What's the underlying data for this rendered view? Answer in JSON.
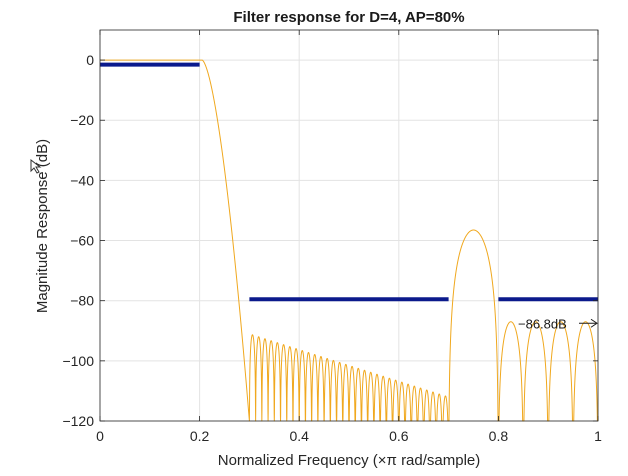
{
  "chart_data": {
    "type": "line",
    "title": "Filter response for D=4, AP=80%",
    "xlabel": "Normalized Frequency (×π rad/sample)",
    "ylabel": "Magnitude Response (dB)",
    "xlim": [
      0,
      1
    ],
    "ylim": [
      -120,
      10
    ],
    "x_ticks": [
      0,
      0.2,
      0.4,
      0.6,
      0.8,
      1
    ],
    "x_tick_labels": [
      "0",
      "0.2",
      "0.4",
      "0.6",
      "0.8",
      "1"
    ],
    "y_ticks": [
      0,
      -20,
      -40,
      -60,
      -80,
      -100,
      -120
    ],
    "y_tick_labels": [
      "0",
      "−20",
      "−40",
      "−60",
      "−80",
      "−100",
      "−120"
    ],
    "grid": true,
    "colors": {
      "response": "#f0a81e",
      "mask": "#0b1a8c",
      "annotation": "#1a1a1a"
    },
    "mask_segments": [
      {
        "x": [
          0,
          0.2
        ],
        "y": [
          -1.5,
          -1.5
        ]
      },
      {
        "x": [
          0.3,
          0.7
        ],
        "y": [
          -79.5,
          -79.5
        ]
      },
      {
        "x": [
          0.8,
          1.0
        ],
        "y": [
          -79.5,
          -79.5
        ]
      }
    ],
    "response_features": {
      "passband": {
        "x": [
          0,
          0.205
        ],
        "y": 0
      },
      "transition": {
        "x": [
          0.205,
          0.3
        ],
        "y_end": -120
      },
      "stopband1": {
        "x": [
          0.3,
          0.7
        ],
        "lobes": 32,
        "peak_start": -91,
        "peak_end": -112
      },
      "bump": {
        "x": [
          0.7,
          0.8
        ],
        "peak_x": 0.75,
        "peak_y": -56.5
      },
      "stopband2": {
        "x": [
          0.8,
          1.0
        ],
        "lobes": 4,
        "peak": -87
      }
    },
    "annotation": {
      "text": "−86.8dB",
      "x": 1.0,
      "y": -87.5
    }
  }
}
